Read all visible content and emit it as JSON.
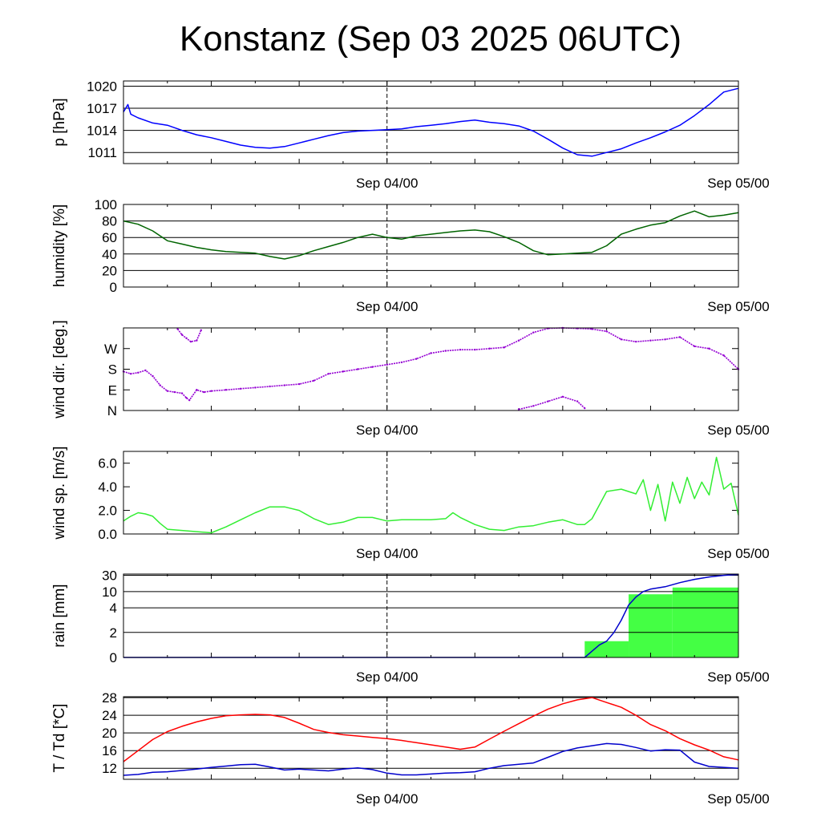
{
  "title": "Konstanz (Sep 03 2025 06UTC)",
  "colors": {
    "pressure": "#0000ff",
    "humidity": "#006400",
    "wind_dir": "#9400d3",
    "wind_sp": "#33ee33",
    "rain_line": "#0000cc",
    "rain_bars": "#44ff44",
    "temp": "#ff0000",
    "dew": "#0000cc"
  },
  "chart_data": [
    {
      "id": "pressure",
      "type": "line",
      "ylabel": "p [hPa]",
      "yticks": [
        1011,
        1014,
        1017,
        1020
      ],
      "ylim": [
        1009.5,
        1020.7
      ],
      "xlim": [
        0,
        42
      ],
      "xticks": [
        {
          "x": 18,
          "label": "Sep 04/00"
        },
        {
          "x": 42,
          "label": "Sep 05/00"
        }
      ],
      "series": [
        {
          "color_key": "pressure",
          "x": [
            0,
            0.3,
            0.5,
            1,
            2,
            3,
            4,
            5,
            6,
            7,
            8,
            9,
            10,
            11,
            12,
            13,
            14,
            15,
            16,
            17,
            18,
            19,
            20,
            21,
            22,
            23,
            24,
            25,
            26,
            27,
            28,
            29,
            30,
            31,
            32,
            33,
            34,
            35,
            36,
            37,
            38,
            39,
            40,
            41,
            42
          ],
          "y": [
            1016.5,
            1017.5,
            1016.2,
            1015.7,
            1015.0,
            1014.7,
            1014.0,
            1013.4,
            1013.0,
            1012.5,
            1012.0,
            1011.7,
            1011.6,
            1011.8,
            1012.3,
            1012.8,
            1013.3,
            1013.7,
            1013.9,
            1014.0,
            1014.1,
            1014.2,
            1014.5,
            1014.7,
            1014.9,
            1015.2,
            1015.4,
            1015.1,
            1014.9,
            1014.6,
            1013.9,
            1012.8,
            1011.6,
            1010.7,
            1010.5,
            1011.0,
            1011.5,
            1012.3,
            1013.0,
            1013.8,
            1014.7,
            1016.0,
            1017.5,
            1019.2,
            1019.7
          ]
        }
      ]
    },
    {
      "id": "humidity",
      "type": "line",
      "ylabel": "humidity [%]",
      "yticks": [
        0,
        20,
        40,
        60,
        80,
        100
      ],
      "ylim": [
        0,
        100
      ],
      "xlim": [
        0,
        42
      ],
      "xticks": [
        {
          "x": 18,
          "label": "Sep 04/00"
        },
        {
          "x": 42,
          "label": "Sep 05/00"
        }
      ],
      "series": [
        {
          "color_key": "humidity",
          "x": [
            0,
            1,
            2,
            3,
            4,
            5,
            6,
            7,
            8,
            9,
            10,
            11,
            12,
            13,
            14,
            15,
            16,
            17,
            18,
            19,
            20,
            21,
            22,
            23,
            24,
            25,
            26,
            27,
            28,
            29,
            30,
            31,
            32,
            33,
            34,
            35,
            36,
            37,
            38,
            39,
            40,
            41,
            42
          ],
          "y": [
            80,
            76,
            68,
            56,
            52,
            48,
            45,
            43,
            42,
            41,
            37,
            34,
            38,
            44,
            49,
            54,
            60,
            64,
            60,
            58,
            62,
            64,
            66,
            68,
            69,
            67,
            61,
            54,
            44,
            39,
            40,
            41,
            42,
            50,
            64,
            70,
            75,
            78,
            86,
            92,
            85,
            87,
            90
          ]
        }
      ]
    },
    {
      "id": "wind_dir",
      "type": "scatter",
      "ylabel": "wind dir. [deg.]",
      "ytick_labels": [
        {
          "v": 0,
          "label": "N"
        },
        {
          "v": 90,
          "label": "E"
        },
        {
          "v": 180,
          "label": "S"
        },
        {
          "v": 270,
          "label": "W"
        }
      ],
      "ylim": [
        0,
        360
      ],
      "xlim": [
        0,
        42
      ],
      "xticks": [
        {
          "x": 18,
          "label": "Sep 04/00"
        },
        {
          "x": 42,
          "label": "Sep 05/00"
        }
      ],
      "series": [
        {
          "color_key": "wind_dir",
          "x": [
            0,
            0.5,
            1,
            1.5,
            2,
            2.5,
            3,
            3.5,
            4,
            4.3,
            4.5,
            5,
            5.5,
            6,
            7,
            8,
            9,
            10,
            11,
            12,
            13,
            14,
            15,
            16,
            17,
            18,
            19,
            20,
            21,
            22,
            23,
            24,
            25,
            26,
            27,
            28,
            29,
            30,
            31,
            32,
            33,
            34,
            35,
            36,
            37,
            38,
            39,
            40,
            41,
            42
          ],
          "y": [
            170,
            160,
            165,
            175,
            150,
            110,
            85,
            80,
            75,
            55,
            45,
            90,
            80,
            85,
            90,
            95,
            100,
            105,
            110,
            115,
            130,
            160,
            170,
            180,
            190,
            200,
            210,
            225,
            250,
            260,
            265,
            265,
            270,
            275,
            305,
            340,
            358,
            360,
            358,
            355,
            345,
            310,
            300,
            305,
            310,
            320,
            280,
            270,
            240,
            180
          ]
        },
        {
          "color_key": "wind_dir",
          "x": [
            3.7,
            4.0,
            4.3,
            4.6,
            5.0,
            5.3
          ],
          "y": [
            355,
            330,
            315,
            300,
            305,
            350
          ]
        },
        {
          "color_key": "wind_dir",
          "x": [
            27,
            28,
            29,
            30,
            31,
            31.5
          ],
          "y": [
            5,
            20,
            40,
            60,
            40,
            10
          ]
        }
      ]
    },
    {
      "id": "wind_speed",
      "type": "line",
      "ylabel": "wind sp. [m/s]",
      "yticks": [
        0.0,
        2.0,
        4.0,
        6.0
      ],
      "ylim": [
        0,
        7
      ],
      "xlim": [
        0,
        42
      ],
      "xticks": [
        {
          "x": 18,
          "label": "Sep 04/00"
        },
        {
          "x": 42,
          "label": "Sep 05/00"
        }
      ],
      "series": [
        {
          "color_key": "wind_sp",
          "x": [
            0,
            0.5,
            1,
            1.5,
            2,
            2.5,
            3,
            4,
            5,
            6,
            7,
            8,
            9,
            10,
            11,
            12,
            13,
            14,
            15,
            16,
            17,
            18,
            19,
            20,
            21,
            22,
            22.5,
            23,
            24,
            25,
            26,
            27,
            28,
            29,
            30,
            31,
            31.5,
            32,
            33,
            34,
            35,
            35.5,
            36,
            36.5,
            37,
            37.5,
            38,
            38.5,
            39,
            39.5,
            40,
            40.5,
            41,
            41.5,
            42
          ],
          "y": [
            1.1,
            1.5,
            1.8,
            1.7,
            1.5,
            0.9,
            0.4,
            0.3,
            0.2,
            0.1,
            0.6,
            1.2,
            1.8,
            2.3,
            2.3,
            2.0,
            1.3,
            0.8,
            1.0,
            1.4,
            1.4,
            1.1,
            1.2,
            1.2,
            1.2,
            1.3,
            1.8,
            1.4,
            0.8,
            0.4,
            0.3,
            0.6,
            0.7,
            1.0,
            1.2,
            0.8,
            0.8,
            1.3,
            3.6,
            3.8,
            3.4,
            4.6,
            2.0,
            4.2,
            1.1,
            4.4,
            2.6,
            4.8,
            3.0,
            4.4,
            3.3,
            6.5,
            3.8,
            4.3,
            1.6
          ]
        }
      ]
    },
    {
      "id": "rain",
      "type": "bar",
      "ylabel": "rain [mm]",
      "ytick_labels": [
        {
          "v": 0,
          "label": "0"
        },
        {
          "v": 2,
          "label": "2"
        },
        {
          "v": 4,
          "label": "4"
        },
        {
          "v": 10,
          "label": "10"
        },
        {
          "v": 30,
          "label": "30"
        }
      ],
      "ylim": [
        0,
        32
      ],
      "xlim": [
        0,
        42
      ],
      "xticks": [
        {
          "x": 18,
          "label": "Sep 04/00"
        },
        {
          "x": 42,
          "label": "Sep 05/00"
        }
      ],
      "bars": [
        {
          "x0": 31.5,
          "x1": 34.5,
          "value": 1.3
        },
        {
          "x0": 34.5,
          "x1": 37.5,
          "value": 9.0
        },
        {
          "x0": 37.5,
          "x1": 42,
          "value": 15.0
        }
      ],
      "series": [
        {
          "color_key": "rain_line",
          "x": [
            0,
            31.5,
            32,
            32.5,
            33,
            33.5,
            34,
            34.5,
            35,
            35.5,
            36,
            37,
            38,
            39,
            40,
            41,
            42
          ],
          "y": [
            0,
            0,
            0.5,
            1.0,
            1.3,
            2.0,
            3.0,
            5.0,
            8.0,
            10.0,
            13.0,
            16.0,
            21.0,
            25.0,
            28.0,
            30.0,
            31.0
          ]
        }
      ]
    },
    {
      "id": "temperature",
      "type": "line",
      "ylabel": "T / Td [*C]",
      "yticks": [
        12,
        16,
        20,
        24,
        28
      ],
      "ylim": [
        9.5,
        28.2
      ],
      "xlim": [
        0,
        42
      ],
      "xticks": [
        {
          "x": 18,
          "label": "Sep 04/00"
        },
        {
          "x": 42,
          "label": "Sep 05/00"
        }
      ],
      "series": [
        {
          "color_key": "temp",
          "x": [
            0,
            1,
            2,
            3,
            4,
            5,
            6,
            7,
            8,
            9,
            10,
            11,
            12,
            13,
            14,
            15,
            16,
            17,
            18,
            19,
            20,
            21,
            22,
            23,
            24,
            25,
            26,
            27,
            28,
            29,
            30,
            31,
            32,
            33,
            34,
            35,
            36,
            37,
            38,
            39,
            40,
            41,
            42
          ],
          "y": [
            13.5,
            16.0,
            18.5,
            20.3,
            21.5,
            22.5,
            23.3,
            23.9,
            24.1,
            24.2,
            24.1,
            23.5,
            22.2,
            20.8,
            20.1,
            19.6,
            19.3,
            19.0,
            18.7,
            18.3,
            17.8,
            17.3,
            16.8,
            16.3,
            16.8,
            18.6,
            20.4,
            22.1,
            23.8,
            25.4,
            26.6,
            27.5,
            28.0,
            26.9,
            25.8,
            24.0,
            21.9,
            20.5,
            18.7,
            17.3,
            16.1,
            14.6,
            13.9
          ]
        },
        {
          "color_key": "dew",
          "x": [
            0,
            1,
            2,
            3,
            4,
            5,
            6,
            7,
            8,
            9,
            10,
            11,
            12,
            13,
            14,
            15,
            16,
            17,
            18,
            19,
            20,
            21,
            22,
            23,
            24,
            25,
            26,
            27,
            28,
            29,
            30,
            31,
            32,
            33,
            34,
            35,
            36,
            37,
            38,
            39,
            40,
            41,
            42
          ],
          "y": [
            10.4,
            10.6,
            11.1,
            11.2,
            11.5,
            11.8,
            12.2,
            12.5,
            12.8,
            12.9,
            12.3,
            11.6,
            11.8,
            11.6,
            11.4,
            11.8,
            12.1,
            11.7,
            10.9,
            10.5,
            10.5,
            10.7,
            10.9,
            11.0,
            11.2,
            12.0,
            12.6,
            12.9,
            13.2,
            14.5,
            15.8,
            16.6,
            17.1,
            17.6,
            17.4,
            16.7,
            15.9,
            16.2,
            16.1,
            13.4,
            12.4,
            12.2,
            12.0
          ]
        }
      ]
    }
  ]
}
